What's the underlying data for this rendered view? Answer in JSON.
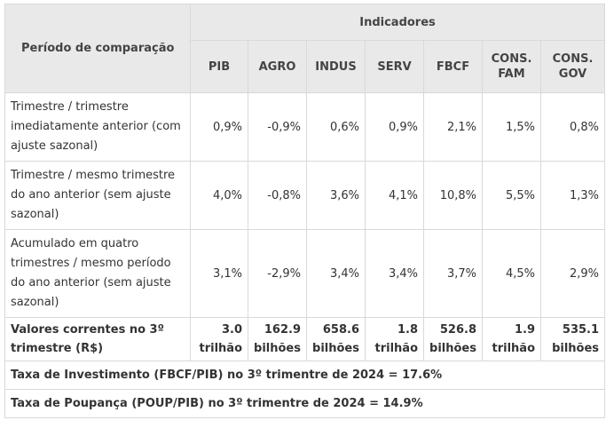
{
  "header": {
    "period_label": "Período de comparação",
    "indicators_label": "Indicadores",
    "columns": [
      [
        "PIB"
      ],
      [
        "AGRO"
      ],
      [
        "INDUS"
      ],
      [
        "SERV"
      ],
      [
        "FBCF"
      ],
      [
        "CONS.",
        "FAM"
      ],
      [
        "CONS.",
        "GOV"
      ]
    ]
  },
  "rows": [
    {
      "label": "Trimestre / trimestre imediatamente anterior (com ajuste sazonal)",
      "values": [
        "0,9%",
        "-0,9%",
        "0,6%",
        "0,9%",
        "2,1%",
        "1,5%",
        "0,8%"
      ]
    },
    {
      "label": "Trimestre / mesmo trimestre do ano anterior (sem ajuste sazonal)",
      "values": [
        "4,0%",
        "-0,8%",
        "3,6%",
        "4,1%",
        "10,8%",
        "5,5%",
        "1,3%"
      ]
    },
    {
      "label": "Acumulado em quatro trimestres / mesmo período do ano anterior (sem ajuste sazonal)",
      "values": [
        "3,1%",
        "-2,9%",
        "3,4%",
        "3,4%",
        "3,7%",
        "4,5%",
        "2,9%"
      ]
    }
  ],
  "current_values": {
    "label": "Valores correntes no 3º trimestre (R$)",
    "values": [
      [
        "3.0",
        "trilhão"
      ],
      [
        "162.9",
        "bilhões"
      ],
      [
        "658.6",
        "bilhões"
      ],
      [
        "1.8",
        "trilhão"
      ],
      [
        "526.8",
        "bilhões"
      ],
      [
        "1.9",
        "trilhão"
      ],
      [
        "535.1",
        "bilhões"
      ]
    ]
  },
  "footer": {
    "investment_rate": "Taxa de Investimento (FBCF/PIB) no 3º trimentre de 2024 = 17.6%",
    "savings_rate": "Taxa de Poupança (POUP/PIB) no 3º trimentre de 2024 = 14.9%"
  }
}
